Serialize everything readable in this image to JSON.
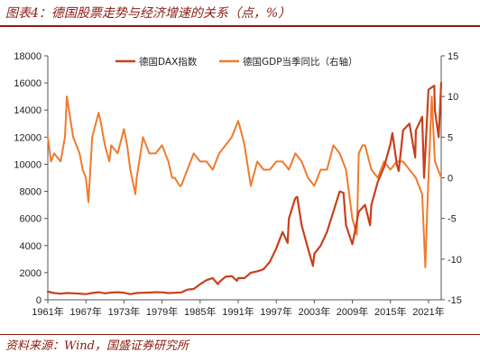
{
  "title": "图表4：德国股票走势与经济增速的关系（点，%）",
  "source": "资料来源：Wind，国盛证券研究所",
  "chart_data": {
    "type": "line",
    "x_tick_labels": [
      "1961年",
      "1967年",
      "1973年",
      "1979年",
      "1985年",
      "1991年",
      "1997年",
      "2003年",
      "2009年",
      "2015年",
      "2021年"
    ],
    "y_left_ticks": [
      "0",
      "2000",
      "4000",
      "6000",
      "8000",
      "10000",
      "12000",
      "14000",
      "16000",
      "18000"
    ],
    "y_right_ticks": [
      "-15",
      "-10",
      "-5",
      "0",
      "5",
      "10",
      "15"
    ],
    "ylim_left": [
      0,
      18000
    ],
    "ylim_right": [
      -15,
      15
    ],
    "xlim": [
      1961,
      2023
    ],
    "grid": false,
    "legend_position": "top",
    "series": [
      {
        "name": "德国DAX指数",
        "axis": "left",
        "color": "#c8401c",
        "x": [
          1961,
          1962,
          1963,
          1964,
          1965,
          1966,
          1967,
          1968,
          1969,
          1970,
          1971,
          1972,
          1973,
          1974,
          1975,
          1976,
          1977,
          1978,
          1979,
          1980,
          1981,
          1982,
          1983,
          1984,
          1985,
          1986,
          1987,
          1987.8,
          1988,
          1989,
          1990,
          1990.8,
          1991,
          1992,
          1993,
          1994,
          1995,
          1996,
          1997,
          1998,
          1998.8,
          1999,
          2000,
          2000.3,
          2001,
          2002,
          2002.8,
          2003,
          2004,
          2005,
          2006,
          2007,
          2007.6,
          2008,
          2009,
          2009.3,
          2010,
          2011,
          2011.8,
          2012,
          2013,
          2014,
          2015,
          2015.3,
          2016,
          2016.3,
          2017,
          2018,
          2018.9,
          2019,
          2020,
          2020.3,
          2021,
          2021.9,
          2022,
          2022.6,
          2023
        ],
        "values": [
          600,
          500,
          450,
          500,
          480,
          450,
          420,
          500,
          560,
          480,
          530,
          560,
          520,
          420,
          500,
          520,
          530,
          560,
          550,
          500,
          520,
          540,
          750,
          800,
          1150,
          1450,
          1600,
          1150,
          1300,
          1700,
          1750,
          1400,
          1600,
          1600,
          2000,
          2100,
          2250,
          2800,
          3800,
          5000,
          4200,
          6000,
          7500,
          7600,
          5500,
          3800,
          2500,
          3400,
          4000,
          5000,
          6500,
          8000,
          7900,
          5500,
          4100,
          4800,
          6500,
          7000,
          5500,
          7000,
          8700,
          9800,
          11500,
          12300,
          10000,
          9500,
          12500,
          13000,
          10500,
          12500,
          13500,
          9000,
          15500,
          15800,
          14000,
          12000,
          16000
        ]
      },
      {
        "name": "德国GDP当季同比（右轴）",
        "axis": "right",
        "color": "#f07a2d",
        "x": [
          1961,
          1961.5,
          1962,
          1963,
          1963.7,
          1964,
          1964.8,
          1965,
          1966,
          1966.5,
          1967,
          1967.4,
          1968,
          1969,
          1969.3,
          1970,
          1970.7,
          1971,
          1972,
          1973,
          1973.5,
          1974,
          1974.8,
          1975,
          1976,
          1977,
          1978,
          1979,
          1980,
          1980.6,
          1981,
          1981.8,
          1982,
          1983,
          1984,
          1985,
          1986,
          1987,
          1988,
          1989,
          1990,
          1991,
          1991.7,
          1992,
          1993,
          1994,
          1995,
          1996,
          1997,
          1998,
          1999,
          2000,
          2001,
          2002,
          2003,
          2004,
          2005,
          2006,
          2007,
          2008,
          2009,
          2009.7,
          2010,
          2010.6,
          2011,
          2012,
          2013,
          2014,
          2015,
          2016,
          2017,
          2018,
          2019,
          2020,
          2020.5,
          2020.8,
          2021,
          2021.5,
          2022,
          2023
        ],
        "values": [
          5,
          2,
          3,
          2,
          5,
          10,
          6,
          5,
          3,
          1,
          0,
          -3,
          5,
          8,
          7,
          4,
          2,
          4,
          3,
          6,
          4,
          1,
          -2,
          0,
          5,
          3,
          3,
          4,
          2,
          0,
          0,
          -1,
          -1,
          1,
          3,
          2,
          2,
          1,
          3,
          4,
          5,
          7,
          5,
          4,
          -1,
          2,
          1,
          1,
          2,
          2,
          1,
          3,
          2,
          0,
          -1,
          1,
          1,
          4,
          3,
          1,
          -5,
          -7,
          3,
          4,
          4,
          1,
          0,
          2,
          1,
          2,
          2,
          1,
          0,
          -2,
          -11,
          -4,
          0,
          10,
          2,
          0
        ]
      }
    ]
  }
}
